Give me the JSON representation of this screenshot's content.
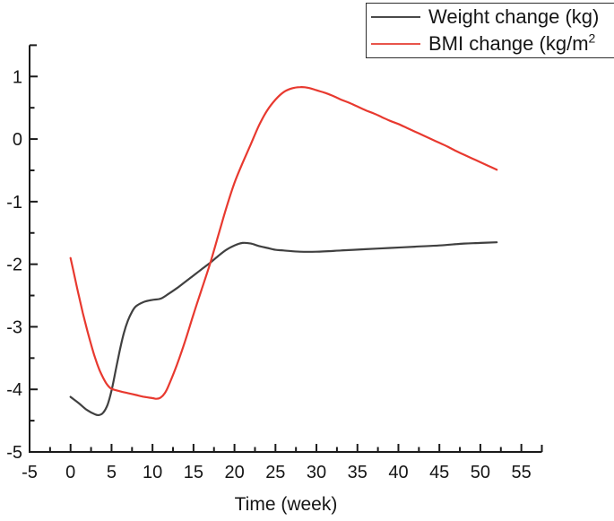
{
  "legend": {
    "position": "top-right",
    "items": [
      {
        "label": "Weight change (kg)",
        "sup": "",
        "color": "#4a4a4a"
      },
      {
        "label": "BMI change (kg/m",
        "sup": "2",
        "color": "#e8554b"
      }
    ]
  },
  "chart_data": {
    "type": "line",
    "title": "",
    "xlabel": "Time (week)",
    "ylabel": "",
    "xlim": [
      -5,
      57.5
    ],
    "ylim": [
      -5,
      1.5
    ],
    "x_ticks": [
      -5,
      0,
      5,
      10,
      15,
      20,
      25,
      30,
      35,
      40,
      45,
      50,
      55
    ],
    "y_ticks": [
      1,
      0,
      -1,
      -2,
      -3,
      -4,
      -5
    ],
    "x_minor_step": 2.5,
    "y_minor_step": 0.5,
    "grid": false,
    "legend_position": "top-right",
    "axis_color": "#1a1a1a",
    "tick_label_color": "#151515",
    "series": [
      {
        "name": "Weight change (kg)",
        "color": "#404040",
        "x": [
          0,
          1,
          2,
          3,
          3.5,
          4,
          4.5,
          5,
          5.5,
          6,
          6.5,
          7,
          7.5,
          8,
          9,
          10,
          11,
          12,
          13,
          14,
          15,
          16,
          17,
          18,
          19,
          20,
          21,
          22,
          23,
          24,
          25,
          26,
          28,
          30,
          33,
          36,
          39,
          42,
          45,
          48,
          50,
          52
        ],
        "y": [
          -4.12,
          -4.22,
          -4.33,
          -4.4,
          -4.41,
          -4.37,
          -4.25,
          -4.02,
          -3.7,
          -3.38,
          -3.1,
          -2.9,
          -2.76,
          -2.67,
          -2.6,
          -2.57,
          -2.55,
          -2.47,
          -2.38,
          -2.28,
          -2.18,
          -2.08,
          -1.98,
          -1.87,
          -1.77,
          -1.7,
          -1.66,
          -1.67,
          -1.71,
          -1.74,
          -1.77,
          -1.78,
          -1.8,
          -1.8,
          -1.78,
          -1.76,
          -1.74,
          -1.72,
          -1.7,
          -1.67,
          -1.66,
          -1.65
        ]
      },
      {
        "name": "BMI change (kg/m2)",
        "color": "#e8392f",
        "x": [
          0,
          0.5,
          1,
          1.5,
          2,
          2.5,
          3,
          3.5,
          4,
          4.5,
          5,
          6,
          7,
          8,
          9,
          10,
          10.5,
          11,
          11.5,
          12,
          13,
          14,
          15,
          16,
          17,
          18,
          19,
          20,
          21,
          22,
          23,
          24,
          25,
          26,
          27,
          28,
          29,
          30,
          31,
          32,
          33,
          34,
          35,
          36,
          37,
          38,
          39,
          40,
          41,
          42,
          43,
          44,
          45,
          46,
          47,
          48,
          49,
          50,
          51,
          52
        ],
        "y": [
          -1.9,
          -2.2,
          -2.5,
          -2.78,
          -3.04,
          -3.28,
          -3.5,
          -3.68,
          -3.82,
          -3.93,
          -3.99,
          -4.03,
          -4.06,
          -4.09,
          -4.12,
          -4.14,
          -4.15,
          -4.13,
          -4.06,
          -3.93,
          -3.6,
          -3.22,
          -2.8,
          -2.4,
          -2.0,
          -1.55,
          -1.1,
          -0.7,
          -0.38,
          -0.08,
          0.22,
          0.46,
          0.63,
          0.75,
          0.81,
          0.83,
          0.82,
          0.78,
          0.74,
          0.69,
          0.63,
          0.58,
          0.52,
          0.46,
          0.41,
          0.35,
          0.29,
          0.24,
          0.18,
          0.12,
          0.06,
          0.0,
          -0.06,
          -0.12,
          -0.19,
          -0.25,
          -0.31,
          -0.37,
          -0.43,
          -0.49
        ]
      }
    ]
  }
}
